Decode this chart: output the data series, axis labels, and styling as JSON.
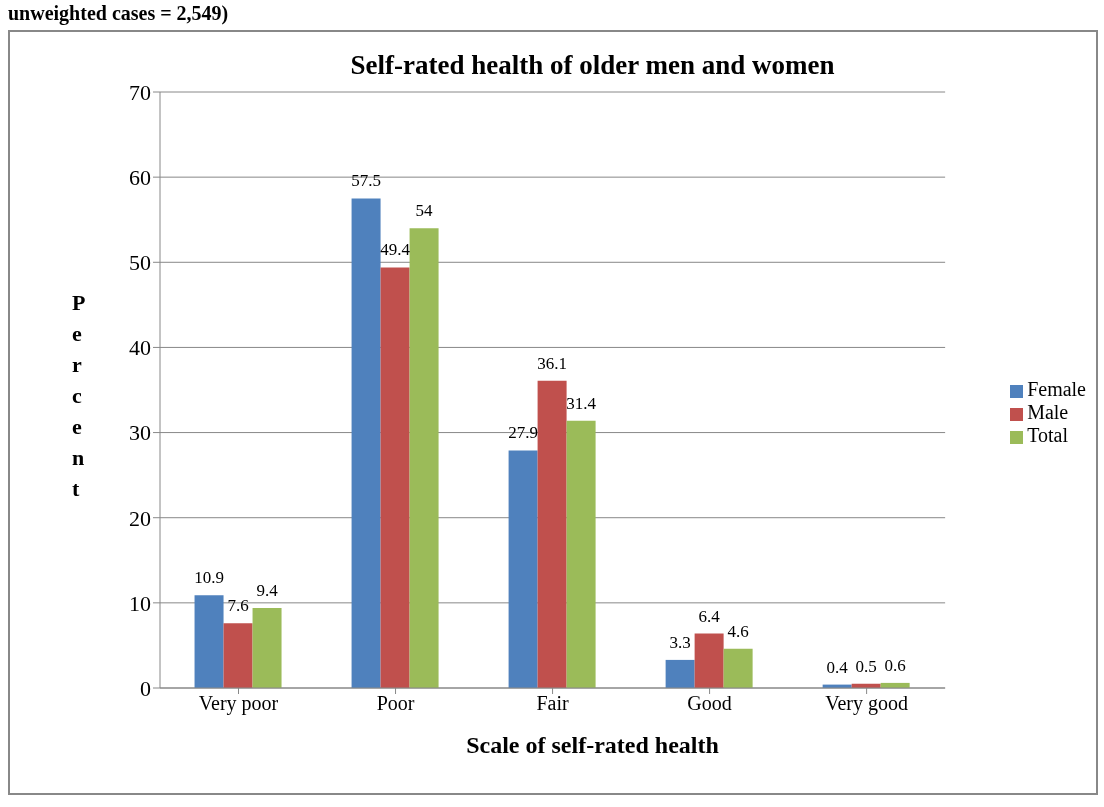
{
  "chart_data": {
    "type": "bar",
    "title": "Self-rated health of older men and women",
    "xlabel": "Scale of self-rated health",
    "ylabel": "Percent",
    "annotations": [
      "unweighted cases = 2,549)"
    ],
    "categories": [
      "Very poor",
      "Poor",
      "Fair",
      "Good",
      "Very good"
    ],
    "series": [
      {
        "name": "Female",
        "color": "#4f81bd",
        "values": [
          10.9,
          57.5,
          27.9,
          3.3,
          0.4
        ]
      },
      {
        "name": "Male",
        "color": "#c0504d",
        "values": [
          7.6,
          49.4,
          36.1,
          6.4,
          0.5
        ]
      },
      {
        "name": "Total",
        "color": "#9bbb59",
        "values": [
          9.4,
          54,
          31.4,
          4.6,
          0.6
        ]
      }
    ],
    "ylim": [
      0,
      70
    ],
    "yticks": [
      0,
      10,
      20,
      30,
      40,
      50,
      60,
      70
    ],
    "grid": "y",
    "legend": "right",
    "data_labels": true
  }
}
